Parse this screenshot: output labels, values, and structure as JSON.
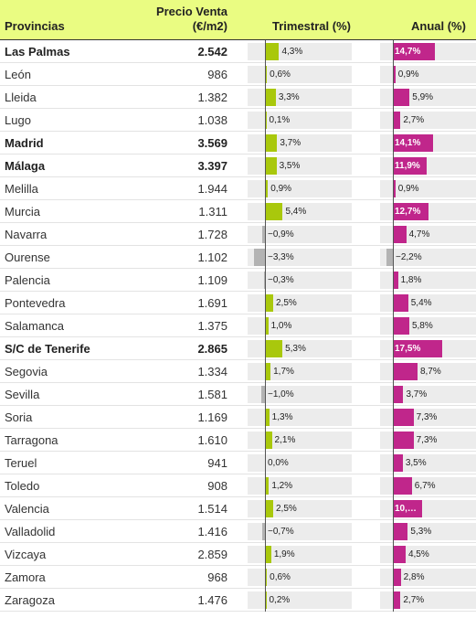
{
  "chart_data": {
    "type": "table",
    "columns": [
      "Provincias",
      "Precio Venta\n(€/m2)",
      "Trimestral (%)",
      "Anual (%)"
    ],
    "headers": {
      "provincias": "Provincias",
      "precio_line1": "Precio Venta",
      "precio_line2": "(€/m2)",
      "trimestral": "Trimestral (%)",
      "anual": "Anual (%)"
    },
    "colors": {
      "header_bg": "#eafc82",
      "trimestral": "#a9c80c",
      "anual": "#c0268b",
      "negative": "#b3b3b3"
    },
    "rows": [
      {
        "provincia": "Las Palmas",
        "precio": "2.542",
        "trimestral": 4.3,
        "trimestral_label": "4,3%",
        "anual": 14.7,
        "anual_label": "14,7%",
        "bold": true
      },
      {
        "provincia": "León",
        "precio": "986",
        "trimestral": 0.6,
        "trimestral_label": "0,6%",
        "anual": 0.9,
        "anual_label": "0,9%",
        "bold": false
      },
      {
        "provincia": "Lleida",
        "precio": "1.382",
        "trimestral": 3.3,
        "trimestral_label": "3,3%",
        "anual": 5.9,
        "anual_label": "5,9%",
        "bold": false
      },
      {
        "provincia": "Lugo",
        "precio": "1.038",
        "trimestral": 0.1,
        "trimestral_label": "0,1%",
        "anual": 2.7,
        "anual_label": "2,7%",
        "bold": false
      },
      {
        "provincia": "Madrid",
        "precio": "3.569",
        "trimestral": 3.7,
        "trimestral_label": "3,7%",
        "anual": 14.1,
        "anual_label": "14,1%",
        "bold": true
      },
      {
        "provincia": "Málaga",
        "precio": "3.397",
        "trimestral": 3.5,
        "trimestral_label": "3,5%",
        "anual": 11.9,
        "anual_label": "11,9%",
        "bold": true
      },
      {
        "provincia": "Melilla",
        "precio": "1.944",
        "trimestral": 0.9,
        "trimestral_label": "0,9%",
        "anual": 0.9,
        "anual_label": "0,9%",
        "bold": false
      },
      {
        "provincia": "Murcia",
        "precio": "1.311",
        "trimestral": 5.4,
        "trimestral_label": "5,4%",
        "anual": 12.7,
        "anual_label": "12,7%",
        "bold": false
      },
      {
        "provincia": "Navarra",
        "precio": "1.728",
        "trimestral": -0.9,
        "trimestral_label": "−0,9%",
        "anual": 4.7,
        "anual_label": "4,7%",
        "bold": false
      },
      {
        "provincia": "Ourense",
        "precio": "1.102",
        "trimestral": -3.3,
        "trimestral_label": "−3,3%",
        "anual": -2.2,
        "anual_label": "−2,2%",
        "bold": false
      },
      {
        "provincia": "Palencia",
        "precio": "1.109",
        "trimestral": -0.3,
        "trimestral_label": "−0,3%",
        "anual": 1.8,
        "anual_label": "1,8%",
        "bold": false
      },
      {
        "provincia": "Pontevedra",
        "precio": "1.691",
        "trimestral": 2.5,
        "trimestral_label": "2,5%",
        "anual": 5.4,
        "anual_label": "5,4%",
        "bold": false
      },
      {
        "provincia": "Salamanca",
        "precio": "1.375",
        "trimestral": 1.0,
        "trimestral_label": "1,0%",
        "anual": 5.8,
        "anual_label": "5,8%",
        "bold": false
      },
      {
        "provincia": "S/C de Tenerife",
        "precio": "2.865",
        "trimestral": 5.3,
        "trimestral_label": "5,3%",
        "anual": 17.5,
        "anual_label": "17,5%",
        "bold": true
      },
      {
        "provincia": "Segovia",
        "precio": "1.334",
        "trimestral": 1.7,
        "trimestral_label": "1,7%",
        "anual": 8.7,
        "anual_label": "8,7%",
        "bold": false
      },
      {
        "provincia": "Sevilla",
        "precio": "1.581",
        "trimestral": -1.0,
        "trimestral_label": "−1,0%",
        "anual": 3.7,
        "anual_label": "3,7%",
        "bold": false
      },
      {
        "provincia": "Soria",
        "precio": "1.169",
        "trimestral": 1.3,
        "trimestral_label": "1,3%",
        "anual": 7.3,
        "anual_label": "7,3%",
        "bold": false
      },
      {
        "provincia": "Tarragona",
        "precio": "1.610",
        "trimestral": 2.1,
        "trimestral_label": "2,1%",
        "anual": 7.3,
        "anual_label": "7,3%",
        "bold": false
      },
      {
        "provincia": "Teruel",
        "precio": "941",
        "trimestral": 0.0,
        "trimestral_label": "0,0%",
        "anual": 3.5,
        "anual_label": "3,5%",
        "bold": false
      },
      {
        "provincia": "Toledo",
        "precio": "908",
        "trimestral": 1.2,
        "trimestral_label": "1,2%",
        "anual": 6.7,
        "anual_label": "6,7%",
        "bold": false
      },
      {
        "provincia": "Valencia",
        "precio": "1.514",
        "trimestral": 2.5,
        "trimestral_label": "2,5%",
        "anual": 10.2,
        "anual_label": "10,…",
        "bold": false
      },
      {
        "provincia": "Valladolid",
        "precio": "1.416",
        "trimestral": -0.7,
        "trimestral_label": "−0,7%",
        "anual": 5.3,
        "anual_label": "5,3%",
        "bold": false
      },
      {
        "provincia": "Vizcaya",
        "precio": "2.859",
        "trimestral": 1.9,
        "trimestral_label": "1,9%",
        "anual": 4.5,
        "anual_label": "4,5%",
        "bold": false
      },
      {
        "provincia": "Zamora",
        "precio": "968",
        "trimestral": 0.6,
        "trimestral_label": "0,6%",
        "anual": 2.8,
        "anual_label": "2,8%",
        "bold": false
      },
      {
        "provincia": "Zaragoza",
        "precio": "1.476",
        "trimestral": 0.2,
        "trimestral_label": "0,2%",
        "anual": 2.7,
        "anual_label": "2,7%",
        "bold": false
      }
    ]
  }
}
